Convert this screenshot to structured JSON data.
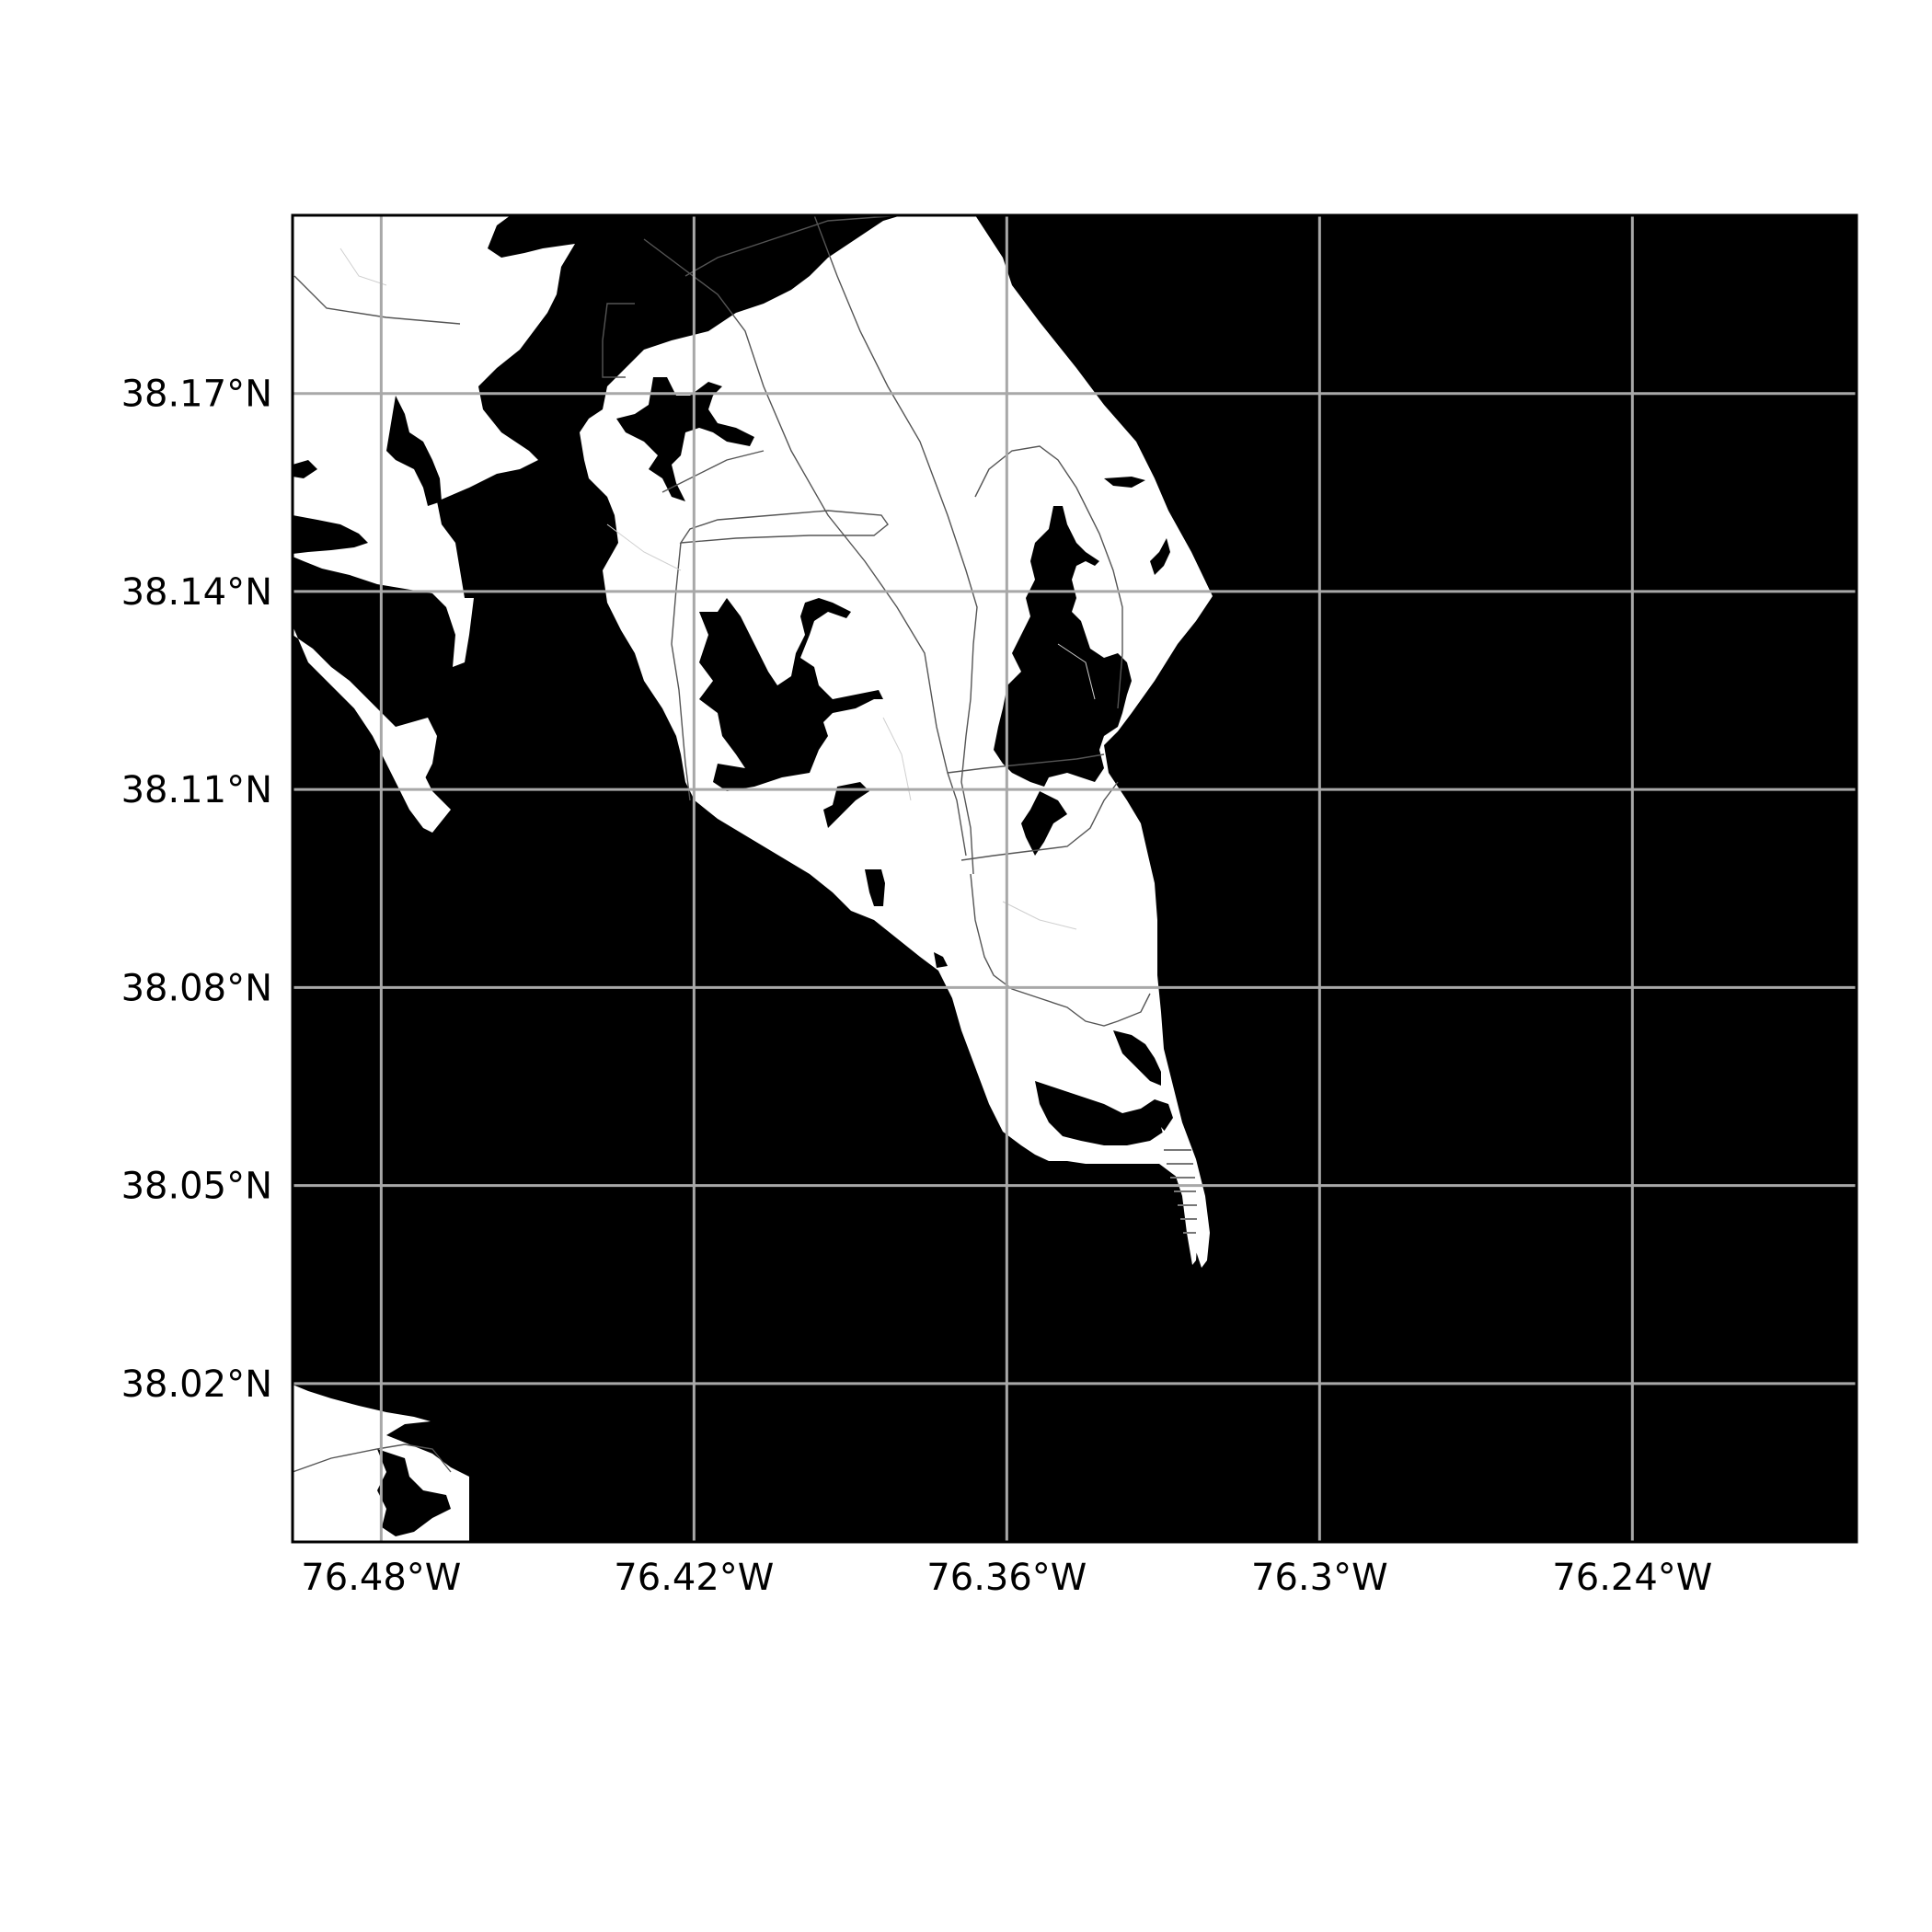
{
  "map": {
    "colors": {
      "water": "#000000",
      "land": "#ffffff",
      "grid": "#a8a8a8",
      "road": "#555555",
      "frame": "#000000"
    },
    "x_ticks": [
      {
        "lon": -76.48,
        "label": "76.48°W"
      },
      {
        "lon": -76.42,
        "label": "76.42°W"
      },
      {
        "lon": -76.36,
        "label": "76.36°W"
      },
      {
        "lon": -76.3,
        "label": "76.3°W"
      },
      {
        "lon": -76.24,
        "label": "76.24°W"
      }
    ],
    "y_ticks": [
      {
        "lat": 38.17,
        "label": "38.17°N"
      },
      {
        "lat": 38.14,
        "label": "38.14°N"
      },
      {
        "lat": 38.11,
        "label": "38.11°N"
      },
      {
        "lat": 38.08,
        "label": "38.08°N"
      },
      {
        "lat": 38.05,
        "label": "38.05°N"
      },
      {
        "lat": 38.02,
        "label": "38.02°N"
      }
    ],
    "extent": {
      "lon_min": -76.497,
      "lon_max": -76.197,
      "lat_min": 37.996,
      "lat_max": 38.197
    },
    "grid": true
  }
}
